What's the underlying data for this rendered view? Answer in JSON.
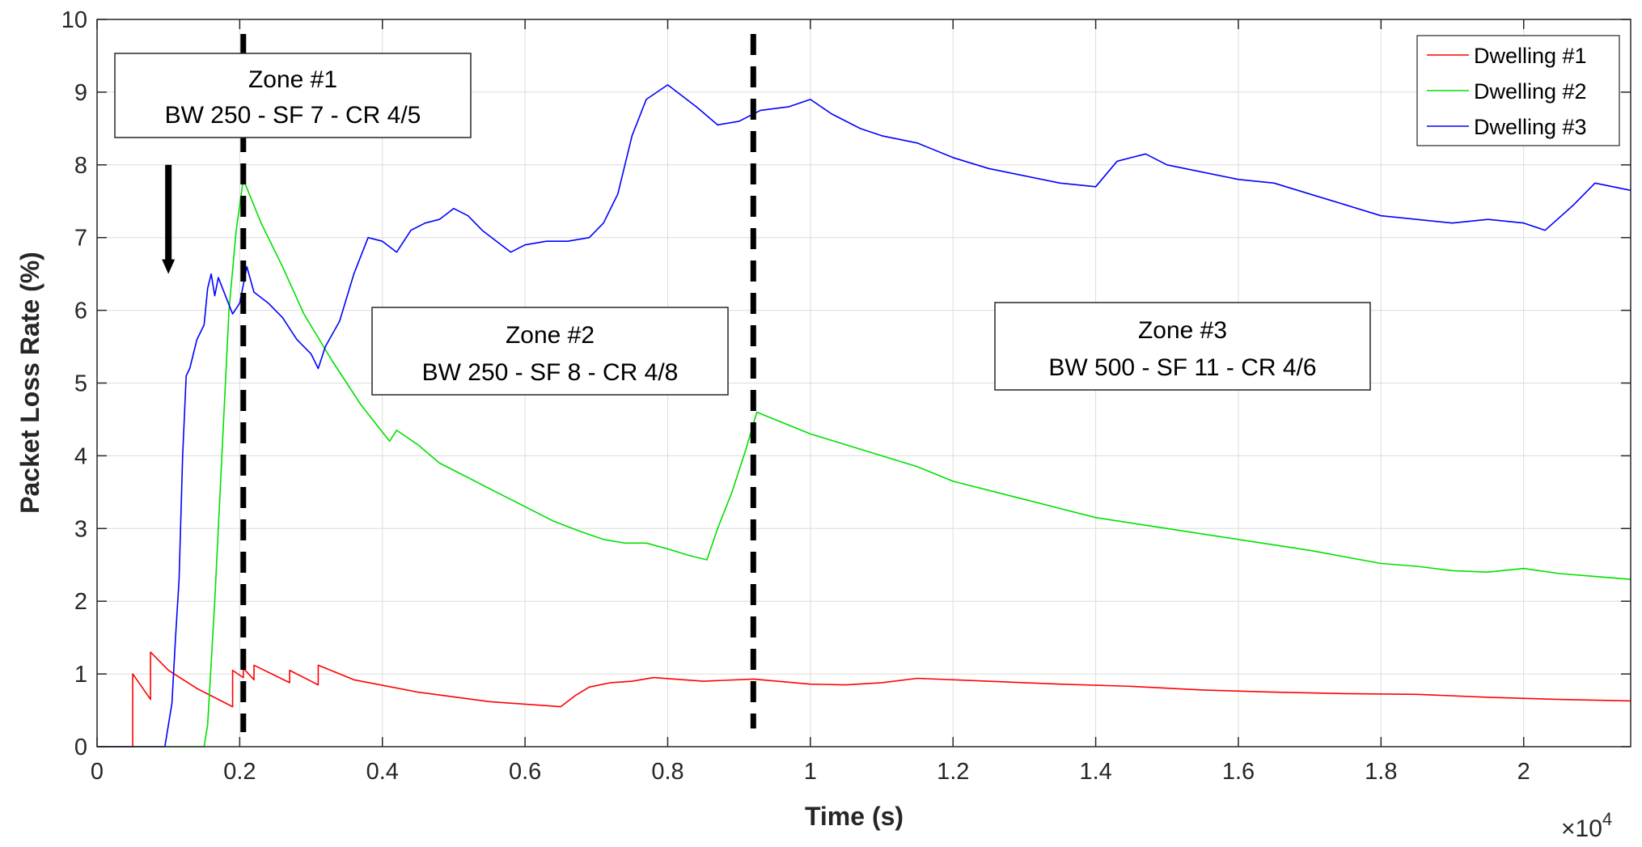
{
  "chart_data": {
    "type": "line",
    "title": "",
    "xlabel": "Time (s)",
    "ylabel": "Packet Loss Rate (%)",
    "x_exponent_label": "×10",
    "x_exponent_power": "4",
    "x_scale": 10000,
    "xlim": [
      0,
      21500
    ],
    "ylim": [
      0,
      10
    ],
    "grid": true,
    "legend_position": "top-right",
    "x_ticks": [
      {
        "value": 0,
        "label": "0"
      },
      {
        "value": 2000,
        "label": "0.2"
      },
      {
        "value": 4000,
        "label": "0.4"
      },
      {
        "value": 6000,
        "label": "0.6"
      },
      {
        "value": 8000,
        "label": "0.8"
      },
      {
        "value": 10000,
        "label": "1"
      },
      {
        "value": 12000,
        "label": "1.2"
      },
      {
        "value": 14000,
        "label": "1.4"
      },
      {
        "value": 16000,
        "label": "1.6"
      },
      {
        "value": 18000,
        "label": "1.8"
      },
      {
        "value": 20000,
        "label": "2"
      }
    ],
    "y_ticks": [
      {
        "value": 0,
        "label": "0"
      },
      {
        "value": 1,
        "label": "1"
      },
      {
        "value": 2,
        "label": "2"
      },
      {
        "value": 3,
        "label": "3"
      },
      {
        "value": 4,
        "label": "4"
      },
      {
        "value": 5,
        "label": "5"
      },
      {
        "value": 6,
        "label": "6"
      },
      {
        "value": 7,
        "label": "7"
      },
      {
        "value": 8,
        "label": "8"
      },
      {
        "value": 9,
        "label": "9"
      },
      {
        "value": 10,
        "label": "10"
      }
    ],
    "series": [
      {
        "name": "Dwelling #1",
        "color": "#ff0000",
        "points": [
          [
            0,
            0
          ],
          [
            500,
            0
          ],
          [
            500,
            1.0
          ],
          [
            750,
            0.65
          ],
          [
            750,
            1.3
          ],
          [
            1000,
            1.05
          ],
          [
            1400,
            0.8
          ],
          [
            1900,
            0.55
          ],
          [
            1900,
            1.05
          ],
          [
            2050,
            0.95
          ],
          [
            2050,
            1.08
          ],
          [
            2200,
            0.92
          ],
          [
            2200,
            1.12
          ],
          [
            2700,
            0.88
          ],
          [
            2700,
            1.05
          ],
          [
            3100,
            0.85
          ],
          [
            3100,
            1.12
          ],
          [
            3600,
            0.92
          ],
          [
            4500,
            0.75
          ],
          [
            5500,
            0.62
          ],
          [
            6500,
            0.55
          ],
          [
            6700,
            0.7
          ],
          [
            6900,
            0.82
          ],
          [
            7200,
            0.88
          ],
          [
            7500,
            0.9
          ],
          [
            7800,
            0.95
          ],
          [
            8500,
            0.9
          ],
          [
            9200,
            0.93
          ],
          [
            10000,
            0.86
          ],
          [
            10500,
            0.85
          ],
          [
            11000,
            0.88
          ],
          [
            11500,
            0.94
          ],
          [
            12500,
            0.9
          ],
          [
            13000,
            0.88
          ],
          [
            13500,
            0.86
          ],
          [
            14500,
            0.83
          ],
          [
            15500,
            0.78
          ],
          [
            16500,
            0.75
          ],
          [
            17500,
            0.73
          ],
          [
            18500,
            0.72
          ],
          [
            19500,
            0.68
          ],
          [
            20500,
            0.65
          ],
          [
            21500,
            0.63
          ]
        ]
      },
      {
        "name": "Dwelling #2",
        "color": "#00e000",
        "points": [
          [
            0,
            0
          ],
          [
            1500,
            0
          ],
          [
            1550,
            0.3
          ],
          [
            1650,
            2.0
          ],
          [
            1750,
            4.0
          ],
          [
            1850,
            6.0
          ],
          [
            1950,
            7.1
          ],
          [
            2050,
            7.8
          ],
          [
            2300,
            7.2
          ],
          [
            2600,
            6.6
          ],
          [
            2900,
            5.95
          ],
          [
            3300,
            5.3
          ],
          [
            3700,
            4.7
          ],
          [
            4100,
            4.2
          ],
          [
            4200,
            4.35
          ],
          [
            4500,
            4.15
          ],
          [
            4800,
            3.9
          ],
          [
            5200,
            3.7
          ],
          [
            5600,
            3.5
          ],
          [
            6000,
            3.3
          ],
          [
            6400,
            3.1
          ],
          [
            6800,
            2.95
          ],
          [
            7100,
            2.85
          ],
          [
            7400,
            2.8
          ],
          [
            7700,
            2.8
          ],
          [
            8000,
            2.72
          ],
          [
            8300,
            2.63
          ],
          [
            8550,
            2.57
          ],
          [
            8700,
            3.0
          ],
          [
            8900,
            3.5
          ],
          [
            9100,
            4.1
          ],
          [
            9250,
            4.6
          ],
          [
            9500,
            4.5
          ],
          [
            10000,
            4.3
          ],
          [
            10500,
            4.15
          ],
          [
            11000,
            4.0
          ],
          [
            11500,
            3.85
          ],
          [
            12000,
            3.65
          ],
          [
            13000,
            3.4
          ],
          [
            14000,
            3.15
          ],
          [
            15000,
            3.0
          ],
          [
            16000,
            2.85
          ],
          [
            17000,
            2.7
          ],
          [
            18000,
            2.52
          ],
          [
            18500,
            2.48
          ],
          [
            19000,
            2.42
          ],
          [
            19500,
            2.4
          ],
          [
            20000,
            2.45
          ],
          [
            20500,
            2.38
          ],
          [
            21000,
            2.34
          ],
          [
            21500,
            2.3
          ]
        ]
      },
      {
        "name": "Dwelling #3",
        "color": "#0000ff",
        "points": [
          [
            0,
            0
          ],
          [
            950,
            0
          ],
          [
            1050,
            0.6
          ],
          [
            1100,
            1.5
          ],
          [
            1150,
            2.3
          ],
          [
            1200,
            4.0
          ],
          [
            1250,
            5.1
          ],
          [
            1300,
            5.2
          ],
          [
            1400,
            5.6
          ],
          [
            1500,
            5.8
          ],
          [
            1550,
            6.3
          ],
          [
            1600,
            6.5
          ],
          [
            1650,
            6.2
          ],
          [
            1700,
            6.45
          ],
          [
            1800,
            6.2
          ],
          [
            1900,
            5.95
          ],
          [
            2000,
            6.1
          ],
          [
            2100,
            6.6
          ],
          [
            2200,
            6.25
          ],
          [
            2400,
            6.1
          ],
          [
            2600,
            5.9
          ],
          [
            2800,
            5.6
          ],
          [
            3000,
            5.4
          ],
          [
            3100,
            5.2
          ],
          [
            3200,
            5.5
          ],
          [
            3400,
            5.85
          ],
          [
            3600,
            6.5
          ],
          [
            3800,
            7.0
          ],
          [
            4000,
            6.95
          ],
          [
            4200,
            6.8
          ],
          [
            4400,
            7.1
          ],
          [
            4600,
            7.2
          ],
          [
            4800,
            7.25
          ],
          [
            5000,
            7.4
          ],
          [
            5200,
            7.3
          ],
          [
            5400,
            7.1
          ],
          [
            5600,
            6.95
          ],
          [
            5800,
            6.8
          ],
          [
            6000,
            6.9
          ],
          [
            6300,
            6.95
          ],
          [
            6600,
            6.95
          ],
          [
            6900,
            7.0
          ],
          [
            7100,
            7.2
          ],
          [
            7300,
            7.6
          ],
          [
            7500,
            8.4
          ],
          [
            7700,
            8.9
          ],
          [
            8000,
            9.1
          ],
          [
            8200,
            8.95
          ],
          [
            8400,
            8.8
          ],
          [
            8700,
            8.55
          ],
          [
            9000,
            8.6
          ],
          [
            9300,
            8.75
          ],
          [
            9700,
            8.8
          ],
          [
            10000,
            8.9
          ],
          [
            10300,
            8.7
          ],
          [
            10700,
            8.5
          ],
          [
            11000,
            8.4
          ],
          [
            11500,
            8.3
          ],
          [
            12000,
            8.1
          ],
          [
            12500,
            7.95
          ],
          [
            13000,
            7.85
          ],
          [
            13500,
            7.75
          ],
          [
            14000,
            7.7
          ],
          [
            14300,
            8.05
          ],
          [
            14700,
            8.15
          ],
          [
            15000,
            8.0
          ],
          [
            15500,
            7.9
          ],
          [
            16000,
            7.8
          ],
          [
            16500,
            7.75
          ],
          [
            17000,
            7.6
          ],
          [
            17500,
            7.45
          ],
          [
            18000,
            7.3
          ],
          [
            18500,
            7.25
          ],
          [
            19000,
            7.2
          ],
          [
            19500,
            7.25
          ],
          [
            20000,
            7.2
          ],
          [
            20300,
            7.1
          ],
          [
            20700,
            7.45
          ],
          [
            21000,
            7.75
          ],
          [
            21500,
            7.65
          ]
        ]
      }
    ],
    "vertical_markers": [
      {
        "x": 2050,
        "y_from": 0.2,
        "y_to": 9.8
      },
      {
        "x": 9200,
        "y_from": 0.25,
        "y_to": 9.8
      }
    ],
    "arrow": {
      "x": 1000,
      "y_from": 8.0,
      "y_to": 6.5
    },
    "annotations": [
      {
        "line1": "Zone #1",
        "line2": "BW 250 - SF 7 - CR 4/5"
      },
      {
        "line1": "Zone #2",
        "line2": "BW 250 - SF 8 - CR 4/8"
      },
      {
        "line1": "Zone #3",
        "line2": "BW 500 - SF 11 - CR 4/6"
      }
    ]
  }
}
